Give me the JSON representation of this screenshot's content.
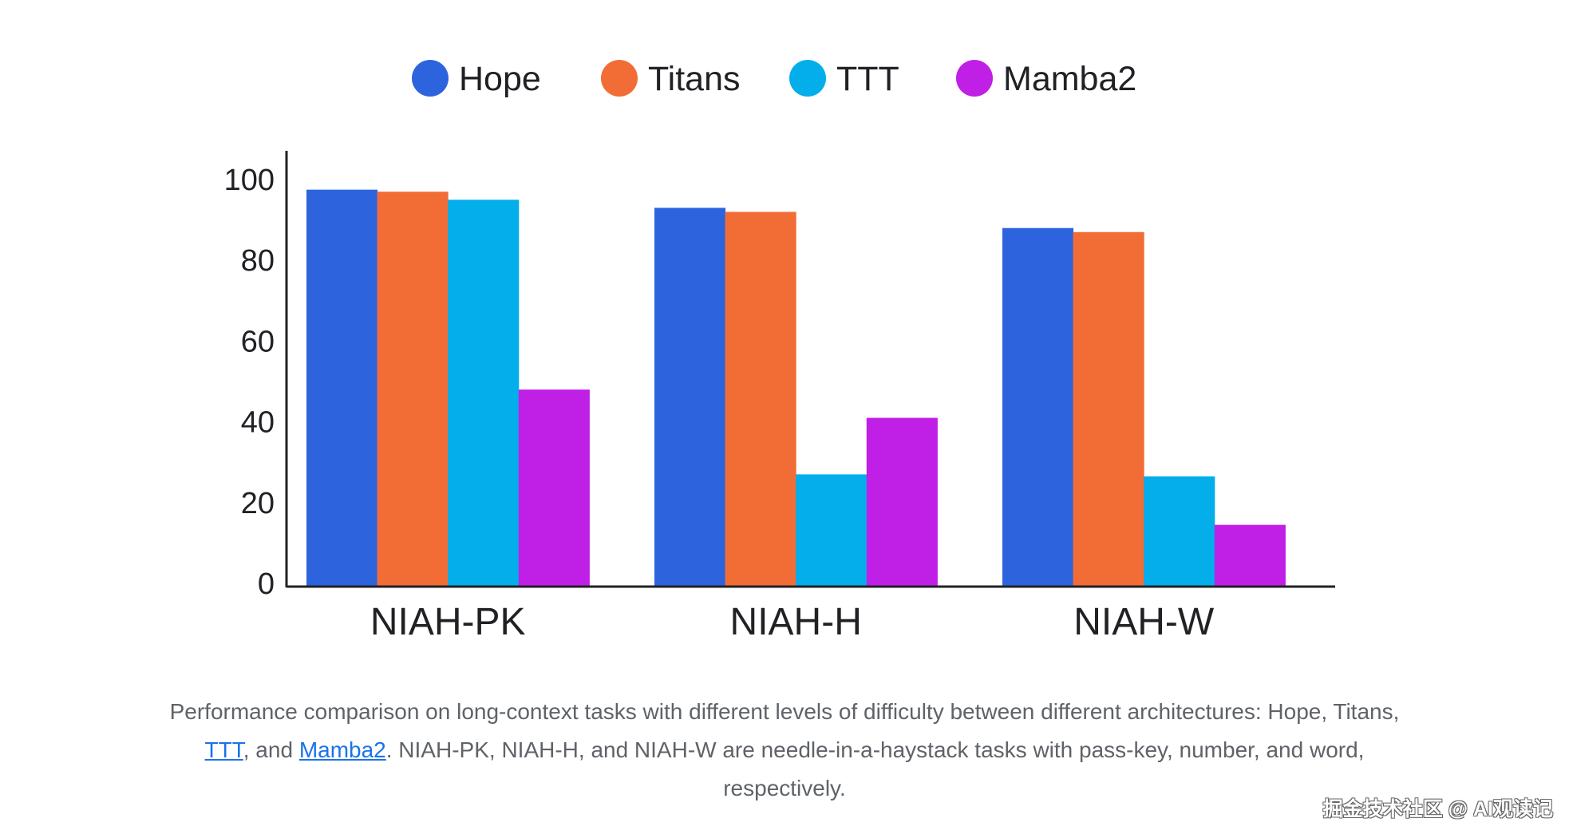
{
  "chart_data": {
    "type": "bar",
    "title": "",
    "xlabel": "",
    "ylabel": "",
    "ylim": [
      0,
      100
    ],
    "yticks": [
      0,
      20,
      40,
      60,
      80,
      100
    ],
    "grid": false,
    "legend_position": "top-center",
    "categories": [
      "NIAH-PK",
      "NIAH-H",
      "NIAH-W"
    ],
    "series": [
      {
        "name": "Hope",
        "color": "#2d64dd",
        "values": [
          97.5,
          93,
          88
        ]
      },
      {
        "name": "Titans",
        "color": "#f26d36",
        "values": [
          97,
          92,
          87
        ]
      },
      {
        "name": "TTT",
        "color": "#03aeeb",
        "values": [
          95,
          27,
          26.5
        ]
      },
      {
        "name": "Mamba2",
        "color": "#c01fe6",
        "values": [
          48,
          41,
          14.5
        ]
      }
    ]
  },
  "caption": {
    "part1": "Performance comparison on long-context tasks with different levels of difficulty between different architectures: Hope, Titans, ",
    "link1": "TTT",
    "part2": ", and ",
    "link2": "Mamba2",
    "part3": ". NIAH-PK, NIAH-H, and NIAH-W are needle-in-a-haystack tasks with pass-key, number, and word, respectively."
  },
  "watermark": "掘金技术社区 @ AI观读记"
}
